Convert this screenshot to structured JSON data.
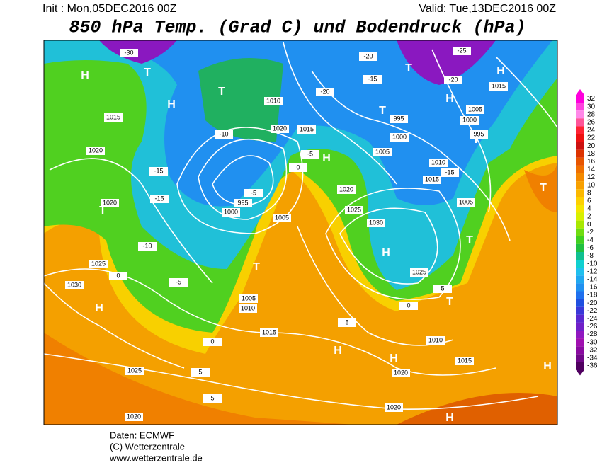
{
  "header": {
    "init": "Init : Mon,05DEC2016 00Z",
    "valid": "Valid: Tue,13DEC2016 00Z",
    "title": "850 hPa Temp. (Grad C) und Bodendruck (hPa)"
  },
  "footer": {
    "source": "Daten: ECMWF",
    "copyright": "(C) Wetterzentrale",
    "url": "www.wetterzentrale.de"
  },
  "colorbar": {
    "ticks": [
      32,
      30,
      28,
      26,
      24,
      22,
      20,
      18,
      16,
      14,
      12,
      10,
      8,
      6,
      4,
      2,
      0,
      -2,
      -4,
      -6,
      -8,
      -10,
      -12,
      -14,
      -16,
      -18,
      -20,
      -22,
      -24,
      -26,
      -28,
      -30,
      -32,
      -34,
      -36
    ],
    "colors": [
      "#ff00dd",
      "#ff44e0",
      "#ff88e8",
      "#ff5599",
      "#ff2233",
      "#ee1111",
      "#cc1111",
      "#dd3300",
      "#e85500",
      "#f07000",
      "#f48a00",
      "#f8a000",
      "#fbb800",
      "#fdd000",
      "#f5e600",
      "#d8f000",
      "#a8e800",
      "#70dd10",
      "#40d020",
      "#20c040",
      "#10c090",
      "#10d0d0",
      "#20c0ee",
      "#20a8f0",
      "#2090f0",
      "#2070ee",
      "#2050e0",
      "#3a38d8",
      "#5a28d0",
      "#7020c8",
      "#9018c0",
      "#a010b0",
      "#8a0aa0",
      "#700888",
      "#500060"
    ]
  },
  "pressure_centers": [
    "H",
    "H",
    "T",
    "T",
    "T",
    "H",
    "T",
    "T",
    "H",
    "H",
    "T",
    "H",
    "T",
    "T",
    "T",
    "H",
    "H",
    "H",
    "H",
    "H",
    "T"
  ],
  "contour_labels": [
    1020,
    1015,
    1020,
    1025,
    1030,
    1025,
    1020,
    995,
    1000,
    1005,
    1010,
    1005,
    1015,
    1020,
    1020,
    1010,
    1015,
    1025,
    1030,
    1025,
    1020,
    1015,
    1005,
    1010,
    1005,
    1000,
    995,
    1005,
    1000,
    995,
    1015,
    1015,
    1010,
    1020,
    -30,
    -25,
    -20,
    -20,
    -15,
    -15,
    -15,
    -15,
    -10,
    -5,
    0,
    0,
    -5,
    0,
    5,
    5,
    5,
    5,
    -5,
    0,
    -10,
    -20
  ]
}
